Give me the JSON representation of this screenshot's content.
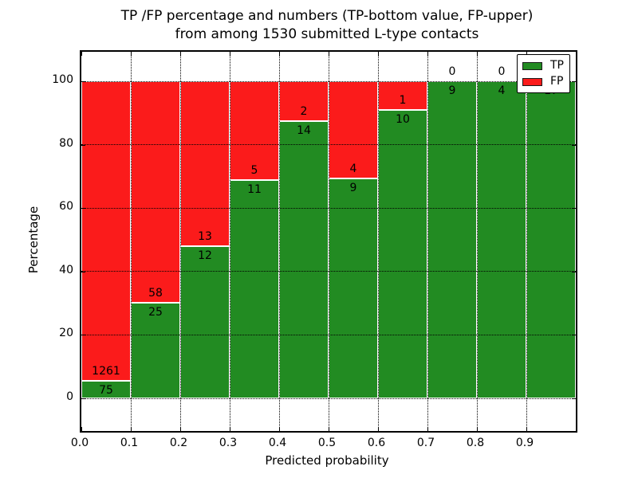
{
  "title": {
    "line1": "TP /FP percentage and numbers (TP-bottom value, FP-upper)",
    "line2": "from among 1530 submitted L-type contacts"
  },
  "chart_data": {
    "type": "bar",
    "stacked": true,
    "normalized": "each bin scaled to 100%; numeric labels show raw counts (TP below boundary, FP above)",
    "title": "TP /FP percentage and numbers (TP-bottom value, FP-upper) from among 1530 submitted L-type contacts",
    "xlabel": "Predicted probability",
    "ylabel": "Percentage",
    "total_contacts": 1530,
    "bins": [
      "0.0-0.1",
      "0.1-0.2",
      "0.2-0.3",
      "0.3-0.4",
      "0.4-0.5",
      "0.5-0.6",
      "0.6-0.7",
      "0.7-0.8",
      "0.8-0.9",
      "0.9-1.0"
    ],
    "series": [
      {
        "name": "TP",
        "color": "#228B22",
        "values": [
          75,
          25,
          12,
          11,
          14,
          9,
          10,
          9,
          4,
          17
        ]
      },
      {
        "name": "FP",
        "color": "#FB1B1B",
        "values": [
          1261,
          58,
          13,
          5,
          2,
          4,
          1,
          0,
          0,
          0
        ]
      }
    ],
    "fp_label_visible": [
      true,
      true,
      true,
      true,
      true,
      true,
      true,
      true,
      true,
      false
    ],
    "x_tick_labels": [
      "0.0",
      "0.1",
      "0.2",
      "0.3",
      "0.4",
      "0.5",
      "0.6",
      "0.7",
      "0.8",
      "0.9"
    ],
    "y_tick_values": [
      0,
      20,
      40,
      60,
      80,
      100
    ],
    "xlim": [
      0.0,
      1.0
    ],
    "ylim": [
      -10.3,
      109.6
    ],
    "grid": "dotted black, x and y",
    "legend": {
      "position": "upper-right",
      "entries": [
        "TP",
        "FP"
      ]
    }
  }
}
